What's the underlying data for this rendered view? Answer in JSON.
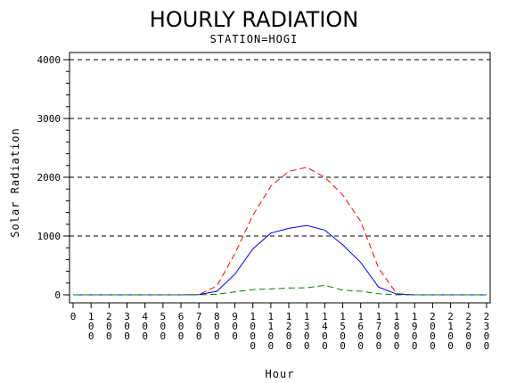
{
  "chart_data": {
    "type": "line",
    "title": "HOURLY RADIATION",
    "subtitle": "STATION=HOGI",
    "xlabel": "Hour",
    "ylabel": "Solar Radiation",
    "x": [
      0,
      100,
      200,
      300,
      400,
      500,
      600,
      700,
      800,
      900,
      1000,
      1100,
      1200,
      1300,
      1400,
      1500,
      1600,
      1700,
      1800,
      1900,
      2000,
      2100,
      2200,
      2300
    ],
    "x_tick_labels": [
      "0",
      "100",
      "200",
      "300",
      "400",
      "500",
      "600",
      "700",
      "800",
      "900",
      "1000",
      "1100",
      "1200",
      "1300",
      "1400",
      "1500",
      "1600",
      "1700",
      "1800",
      "1900",
      "2000",
      "2100",
      "2200",
      "2300"
    ],
    "ylim": [
      0,
      4000
    ],
    "yticks": [
      0,
      1000,
      2000,
      3000,
      4000
    ],
    "y_tick_labels": [
      "0",
      "1000",
      "2000",
      "3000",
      "4000"
    ],
    "grid": "dashed horizontal at major y ticks",
    "series": [
      {
        "color": "#ff0000",
        "style": "dashed",
        "values": [
          0,
          0,
          0,
          0,
          0,
          0,
          0,
          5,
          150,
          700,
          1350,
          1850,
          2100,
          2170,
          2000,
          1700,
          1250,
          450,
          20,
          0,
          0,
          0,
          0,
          0
        ]
      },
      {
        "color": "#0000ff",
        "style": "solid",
        "values": [
          0,
          0,
          0,
          0,
          0,
          0,
          0,
          5,
          60,
          350,
          780,
          1050,
          1130,
          1180,
          1100,
          850,
          550,
          130,
          10,
          0,
          0,
          0,
          0,
          0
        ]
      },
      {
        "color": "#008000",
        "style": "dashed",
        "values": [
          0,
          0,
          0,
          0,
          0,
          0,
          0,
          0,
          10,
          50,
          90,
          100,
          115,
          120,
          160,
          80,
          60,
          20,
          0,
          0,
          0,
          0,
          0,
          0
        ]
      }
    ]
  }
}
